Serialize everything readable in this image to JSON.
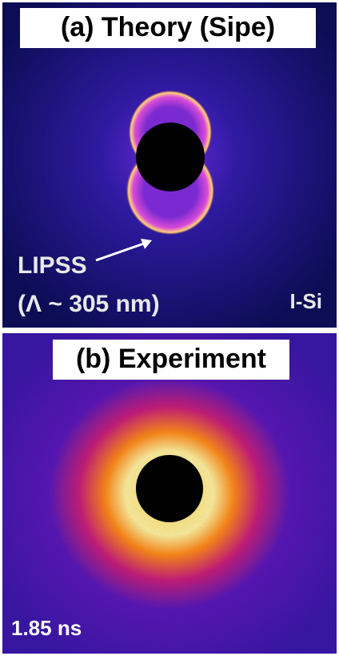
{
  "panels": [
    {
      "title": "(a) Theory (Sipe)",
      "annotation": "LIPSS",
      "annotation_sub": "(Λ ~ 305 nm)",
      "material": "I-Si"
    },
    {
      "title": "(b) Experiment",
      "time": "1.85 ns"
    }
  ]
}
